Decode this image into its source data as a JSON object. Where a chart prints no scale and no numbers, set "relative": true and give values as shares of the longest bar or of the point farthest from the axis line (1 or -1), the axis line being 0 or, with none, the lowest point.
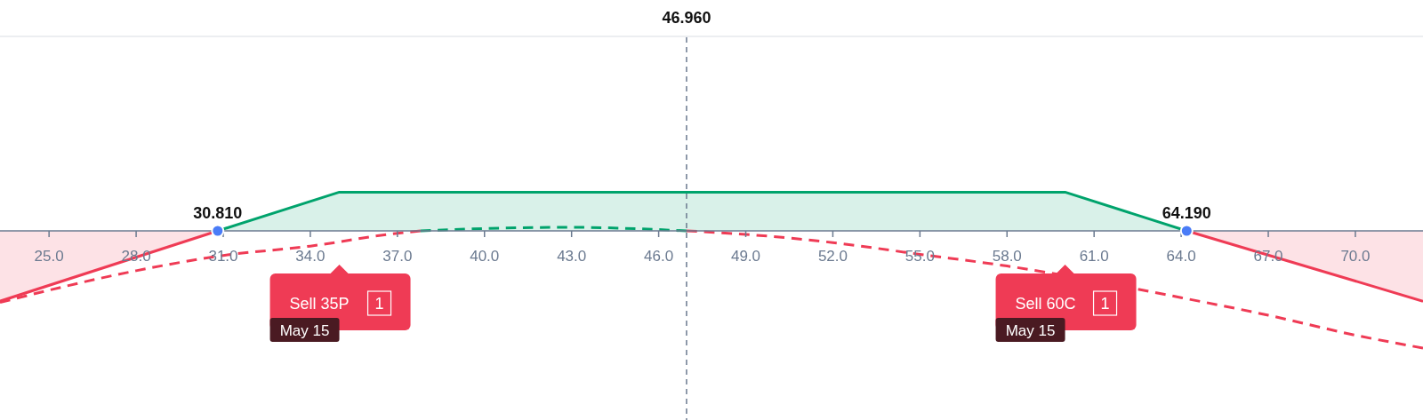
{
  "chart_data": {
    "type": "area",
    "relative": true,
    "xlim": [
      23.31,
      72.33
    ],
    "xticks": [
      {
        "value": 25,
        "label": "25.0"
      },
      {
        "value": 28,
        "label": "28.0"
      },
      {
        "value": 31,
        "label": "31.0"
      },
      {
        "value": 34,
        "label": "34.0"
      },
      {
        "value": 37,
        "label": "37.0"
      },
      {
        "value": 40,
        "label": "40.0"
      },
      {
        "value": 43,
        "label": "43.0"
      },
      {
        "value": 46,
        "label": "46.0"
      },
      {
        "value": 49,
        "label": "49.0"
      },
      {
        "value": 52,
        "label": "52.0"
      },
      {
        "value": 55,
        "label": "55.0"
      },
      {
        "value": 58,
        "label": "58.0"
      },
      {
        "value": 61,
        "label": "61.0"
      },
      {
        "value": 64,
        "label": "64.0"
      },
      {
        "value": 67,
        "label": "67.0"
      },
      {
        "value": 70,
        "label": "70.0"
      }
    ],
    "series": [
      {
        "color": "#ef3b55",
        "x": [
          23.31,
          30.81
        ],
        "values": [
          -0.6,
          0
        ]
      },
      {
        "color": "#00a36c",
        "x": [
          30.81,
          35,
          60,
          64.19
        ],
        "values": [
          0,
          0.33,
          0.33,
          0
        ]
      },
      {
        "color": "#ef3b55",
        "x": [
          64.19,
          72.33
        ],
        "values": [
          0,
          -0.6
        ]
      },
      {
        "type": "line",
        "line_style": "dashed",
        "color": "#ef3b55",
        "x": [
          23.31,
          28,
          31,
          34,
          37,
          37.8
        ],
        "values": [
          -0.61,
          -0.34,
          -0.21,
          -0.13,
          -0.02,
          0
        ]
      },
      {
        "type": "line",
        "line_style": "dashed",
        "color": "#00a36c",
        "x": [
          37.8,
          40,
          43,
          46.96
        ],
        "values": [
          0,
          0.02,
          0.03,
          0
        ]
      },
      {
        "type": "line",
        "line_style": "dashed",
        "color": "#ef3b55",
        "x": [
          46.96,
          49,
          52,
          55,
          58,
          64,
          67,
          70,
          72.33
        ],
        "values": [
          0,
          -0.03,
          -0.1,
          -0.2,
          -0.3,
          -0.57,
          -0.72,
          -0.89,
          -1
        ]
      }
    ],
    "ref_lines": [
      {
        "axis": "x",
        "value": 46.96,
        "label": "46.960",
        "color": "#6b7a90",
        "line_style": "dashed"
      }
    ],
    "annotations": [
      {
        "text": "30.810",
        "x": 30.81,
        "y": 0
      },
      {
        "text": "64.190",
        "x": 64.19,
        "y": 0
      },
      "Sell 35P",
      "1",
      "May 15",
      "Sell 60C",
      "1",
      "May 15"
    ]
  }
}
